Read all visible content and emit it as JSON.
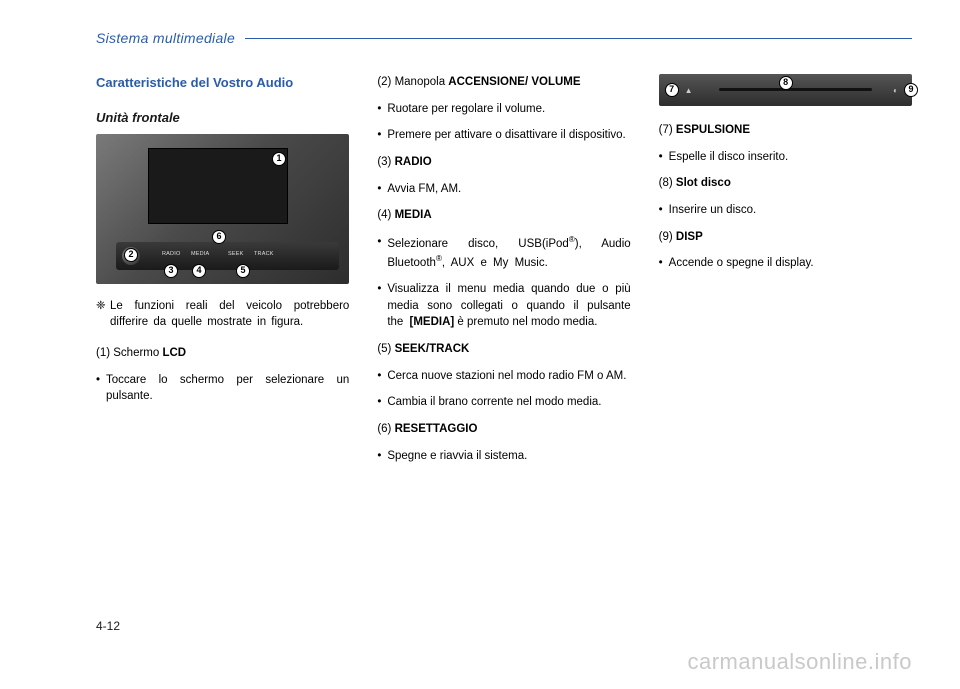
{
  "header": {
    "title": "Sistema multimediale"
  },
  "col1": {
    "section_title": "Caratteristiche del Vostro Audio",
    "subtitle": "Unità frontale",
    "photo": {
      "labels": {
        "radio": "RADIO",
        "media": "MEDIA",
        "seek": "SEEK",
        "track": "TRACK"
      },
      "nums": {
        "n1": "1",
        "n2": "2",
        "n3": "3",
        "n4": "4",
        "n5": "5",
        "n6": "6"
      }
    },
    "note_sym": "❈",
    "note_text": "Le funzioni reali del veicolo potrebbero differire da quelle mostrate in figura.",
    "item1_head_pre": "(1) Schermo ",
    "item1_head_b": "LCD",
    "item1_bullet": "Toccare lo schermo per selezionare un pulsante."
  },
  "col2": {
    "item2_head_pre": "(2) Manopola ",
    "item2_head_b": "ACCENSIONE/ VOLUME",
    "item2_b1": "Ruotare per regolare il volume.",
    "item2_b2": "Premere per attivare o disattivare il dispositivo.",
    "item3_head_pre": "(3) ",
    "item3_head_b": "RADIO",
    "item3_b1": "Avvia FM, AM.",
    "item4_head_pre": "(4) ",
    "item4_head_b": "MEDIA",
    "item4_b1_html": "Selezionare disco, USB(iPod<sup>®</sup>), Audio Bluetooth<sup>®</sup>, AUX e My Music.",
    "item4_b2_pre": "Visualizza il menu media quando due o più media sono collegati o quando il pulsante the ",
    "item4_b2_b": "[MEDIA]",
    "item4_b2_post": " è premuto nel modo media.",
    "item5_head_pre": "(5) ",
    "item5_head_b": "SEEK/TRACK",
    "item5_b1": "Cerca nuove stazioni nel modo radio FM o AM.",
    "item5_b2": "Cambia il brano corrente nel modo media.",
    "item6_head_pre": "(6) ",
    "item6_head_b": "RESETTAGGIO",
    "item6_b1": "Spegne e riavvia il sistema."
  },
  "col3": {
    "photo": {
      "n7": "7",
      "n8": "8",
      "n9": "9"
    },
    "item7_head_pre": "(7) ",
    "item7_head_b": "ESPULSIONE",
    "item7_b1": "Espelle il disco inserito.",
    "item8_head_pre": "(8) ",
    "item8_head_b": "Slot disco",
    "item8_b1": "Inserire un disco.",
    "item9_head_pre": "(9) ",
    "item9_head_b": "DISP",
    "item9_b1": "Accende o spegne il display."
  },
  "page_num": "4-12",
  "watermark": "carmanualsonline.info"
}
